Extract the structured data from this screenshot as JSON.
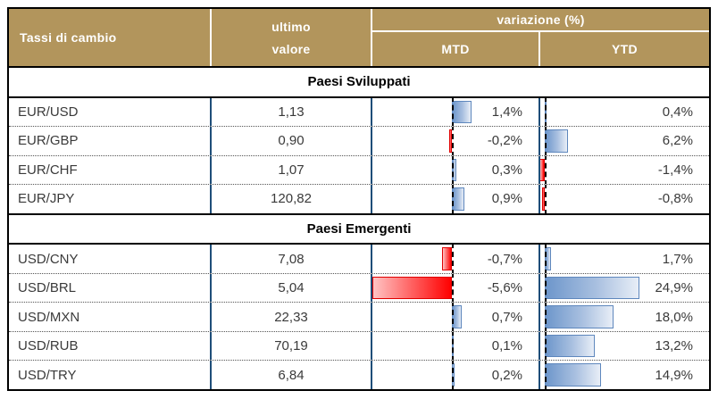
{
  "header": {
    "title": "Tassi di cambio",
    "last_value_line1": "ultimo",
    "last_value_line2": "valore",
    "variation": "variazione (%)",
    "mtd": "MTD",
    "ytd": "YTD"
  },
  "colors": {
    "header_bg": "#B2955C",
    "header_text": "#FFFFFF",
    "column_divider": "#1F4E79",
    "outer_border": "#000000",
    "positive_bar": "#638EC6",
    "positive_bar_light": "#E8EEF7",
    "negative_bar": "#FF0000",
    "negative_bar_light": "#FFC4C4",
    "body_text": "#3A3A3A",
    "section_text": "#000000",
    "axis_line": "#000000"
  },
  "bars": {
    "mtd": {
      "axis_frac": 0.479,
      "width_frac_per_pct": 0.0855
    },
    "ytd": {
      "axis_frac": 0.0265,
      "width_frac_per_pct": 0.0225
    }
  },
  "rows": [
    {
      "type": "section",
      "label": "Paesi Sviluppati"
    },
    {
      "type": "data",
      "pair": "EUR/USD",
      "value": "1,13",
      "mtd": 1.4,
      "mtd_label": "1,4%",
      "ytd": 0.4,
      "ytd_label": "0,4%"
    },
    {
      "type": "data",
      "pair": "EUR/GBP",
      "value": "0,90",
      "mtd": -0.2,
      "mtd_label": "-0,2%",
      "ytd": 6.2,
      "ytd_label": "6,2%"
    },
    {
      "type": "data",
      "pair": "EUR/CHF",
      "value": "1,07",
      "mtd": 0.3,
      "mtd_label": "0,3%",
      "ytd": -1.4,
      "ytd_label": "-1,4%"
    },
    {
      "type": "data",
      "pair": "EUR/JPY",
      "value": "120,82",
      "mtd": 0.9,
      "mtd_label": "0,9%",
      "ytd": -0.8,
      "ytd_label": "-0,8%"
    },
    {
      "type": "section",
      "label": "Paesi Emergenti"
    },
    {
      "type": "data",
      "pair": "USD/CNY",
      "value": "7,08",
      "mtd": -0.7,
      "mtd_label": "-0,7%",
      "ytd": 1.7,
      "ytd_label": "1,7%"
    },
    {
      "type": "data",
      "pair": "USD/BRL",
      "value": "5,04",
      "mtd": -5.6,
      "mtd_label": "-5,6%",
      "ytd": 24.9,
      "ytd_label": "24,9%"
    },
    {
      "type": "data",
      "pair": "USD/MXN",
      "value": "22,33",
      "mtd": 0.7,
      "mtd_label": "0,7%",
      "ytd": 18.0,
      "ytd_label": "18,0%"
    },
    {
      "type": "data",
      "pair": "USD/RUB",
      "value": "70,19",
      "mtd": 0.1,
      "mtd_label": "0,1%",
      "ytd": 13.2,
      "ytd_label": "13,2%"
    },
    {
      "type": "data",
      "pair": "USD/TRY",
      "value": "6,84",
      "mtd": 0.2,
      "mtd_label": "0,2%",
      "ytd": 14.9,
      "ytd_label": "14,9%"
    }
  ],
  "chart_data": {
    "type": "table",
    "title": "Tassi di cambio",
    "columns": [
      "Tassi di cambio",
      "ultimo valore",
      "variazione (%) MTD",
      "variazione (%) YTD"
    ],
    "bar_style": "excel-gradient-data-bars, blue positive / red negative",
    "sections": [
      {
        "name": "Paesi Sviluppati",
        "rows": [
          {
            "pair": "EUR/USD",
            "ultimo_valore": 1.13,
            "mtd_pct": 1.4,
            "ytd_pct": 0.4
          },
          {
            "pair": "EUR/GBP",
            "ultimo_valore": 0.9,
            "mtd_pct": -0.2,
            "ytd_pct": 6.2
          },
          {
            "pair": "EUR/CHF",
            "ultimo_valore": 1.07,
            "mtd_pct": 0.3,
            "ytd_pct": -1.4
          },
          {
            "pair": "EUR/JPY",
            "ultimo_valore": 120.82,
            "mtd_pct": 0.9,
            "ytd_pct": -0.8
          }
        ]
      },
      {
        "name": "Paesi Emergenti",
        "rows": [
          {
            "pair": "USD/CNY",
            "ultimo_valore": 7.08,
            "mtd_pct": -0.7,
            "ytd_pct": 1.7
          },
          {
            "pair": "USD/BRL",
            "ultimo_valore": 5.04,
            "mtd_pct": -5.6,
            "ytd_pct": 24.9
          },
          {
            "pair": "USD/MXN",
            "ultimo_valore": 22.33,
            "mtd_pct": 0.7,
            "ytd_pct": 18.0
          },
          {
            "pair": "USD/RUB",
            "ultimo_valore": 70.19,
            "mtd_pct": 0.1,
            "ytd_pct": 13.2
          },
          {
            "pair": "USD/TRY",
            "ultimo_valore": 6.84,
            "mtd_pct": 0.2,
            "ytd_pct": 14.9
          }
        ]
      }
    ]
  }
}
